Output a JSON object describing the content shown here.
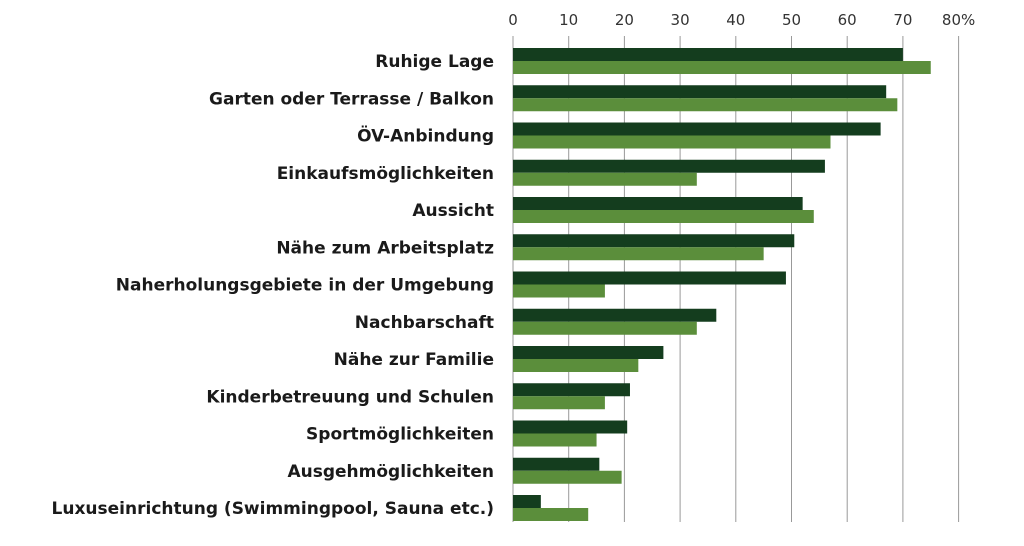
{
  "chart_data": {
    "type": "bar",
    "orientation": "horizontal",
    "categories": [
      "Ruhige Lage",
      "Garten oder Terrasse / Balkon",
      "ÖV-Anbindung",
      "Einkaufsmöglichkeiten",
      "Aussicht",
      "Nähe zum Arbeitsplatz",
      "Naherholungsgebiete in der Umgebung",
      "Nachbarschaft",
      "Nähe zur Familie",
      "Kinderbetreuung und Schulen",
      "Sportmöglichkeiten",
      "Ausgehmöglichkeiten",
      "Luxuseinrichtung (Swimmingpool, Sauna etc.)"
    ],
    "series": [
      {
        "color": "#143d1e",
        "values": [
          70,
          67,
          66,
          56,
          52,
          50.5,
          49,
          36.5,
          27,
          21,
          20.5,
          15.5,
          5
        ]
      },
      {
        "color": "#5b8e3b",
        "values": [
          75,
          69,
          57,
          33,
          54,
          45,
          16.5,
          33,
          22.5,
          16.5,
          15,
          19.5,
          13.5
        ]
      }
    ],
    "xlim": [
      0,
      80
    ],
    "xticks": [
      "0",
      "10",
      "20",
      "30",
      "40",
      "50",
      "60",
      "70",
      "80%"
    ],
    "grid": true,
    "legend": "none"
  }
}
